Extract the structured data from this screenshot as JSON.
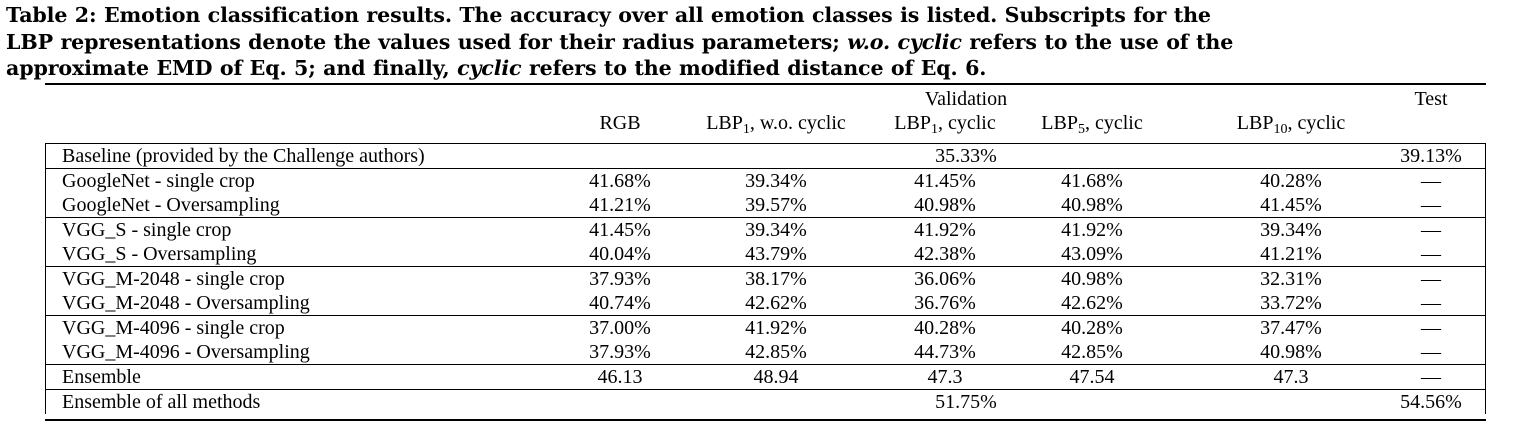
{
  "caption": {
    "p1": "Table 2: Emotion classification results. The accuracy over all emotion classes is listed. Subscripts for the",
    "p2a": "LBP representations denote the values used for their radius parameters; ",
    "p2b": "w.o. cyclic",
    "p2c": " refers to the use of the",
    "p3a": "approximate EMD of Eq. 5; and finally, ",
    "p3b": "cyclic",
    "p3c": " refers to the modified distance of Eq. 6."
  },
  "header": {
    "validation": "Validation",
    "test": "Test",
    "cols": [
      {
        "base": "RGB",
        "sub": "",
        "rest": ""
      },
      {
        "base": "LBP",
        "sub": "1",
        "rest": ", w.o. cyclic"
      },
      {
        "base": "LBP",
        "sub": "1",
        "rest": ", cyclic"
      },
      {
        "base": "LBP",
        "sub": "5",
        "rest": ", cyclic"
      },
      {
        "base": "LBP",
        "sub": "10",
        "rest": ", cyclic"
      }
    ]
  },
  "baseline": {
    "label": "Baseline (provided by the Challenge authors)",
    "validation": "35.33%",
    "test": "39.13%"
  },
  "rows": [
    {
      "label": "GoogleNet - single crop",
      "values": [
        "41.68%",
        "39.34%",
        "41.45%",
        "41.68%",
        "40.28%"
      ],
      "test": "—"
    },
    {
      "label": "GoogleNet - Oversampling",
      "values": [
        "41.21%",
        "39.57%",
        "40.98%",
        "40.98%",
        "41.45%"
      ],
      "test": "—"
    },
    {
      "label": "VGG_S - single crop",
      "values": [
        "41.45%",
        "39.34%",
        "41.92%",
        "41.92%",
        "39.34%"
      ],
      "test": "—"
    },
    {
      "label": "VGG_S - Oversampling",
      "values": [
        "40.04%",
        "43.79%",
        "42.38%",
        "43.09%",
        "41.21%"
      ],
      "test": "—"
    },
    {
      "label": "VGG_M-2048 - single crop",
      "values": [
        "37.93%",
        "38.17%",
        "36.06%",
        "40.98%",
        "32.31%"
      ],
      "test": "—"
    },
    {
      "label": "VGG_M-2048 - Oversampling",
      "values": [
        "40.74%",
        "42.62%",
        "36.76%",
        "42.62%",
        "33.72%"
      ],
      "test": "—"
    },
    {
      "label": "VGG_M-4096 - single crop",
      "values": [
        "37.00%",
        "41.92%",
        "40.28%",
        "40.28%",
        "37.47%"
      ],
      "test": "—"
    },
    {
      "label": "VGG_M-4096 - Oversampling",
      "values": [
        "37.93%",
        "42.85%",
        "44.73%",
        "42.85%",
        "40.98%"
      ],
      "test": "—"
    },
    {
      "label": "Ensemble",
      "values": [
        "46.13",
        "48.94",
        "47.3",
        "47.54",
        "47.3"
      ],
      "test": "—"
    }
  ],
  "ensemble_all": {
    "label": "Ensemble of all methods",
    "validation": "51.75%",
    "test": "54.56%"
  }
}
